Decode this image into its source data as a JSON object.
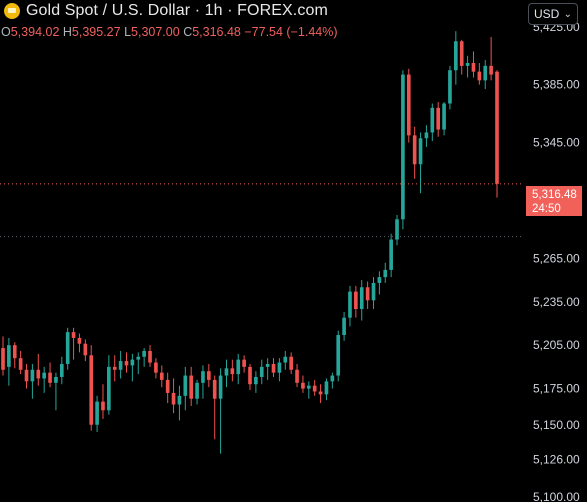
{
  "header": {
    "title": "Gold Spot / U.S. Dollar · 1h · FOREX.com",
    "ohlc": [
      {
        "key": "O",
        "value": "5,394.02"
      },
      {
        "key": "H",
        "value": "5,395.27"
      },
      {
        "key": "L",
        "value": "5,307.00"
      },
      {
        "key": "C",
        "value": "5,316.48"
      }
    ],
    "change": "−77.54 (−1.44%)"
  },
  "currency_selector": {
    "label": "USD"
  },
  "price_label": {
    "price": "5,316.48",
    "countdown": "24:50"
  },
  "colors": {
    "up": "#26a69a",
    "down": "#ef5350",
    "background": "#000000",
    "axis_text": "#d1d4dc"
  },
  "chart_data": {
    "type": "candlestick",
    "interval": "1h",
    "y_axis": {
      "side": "right",
      "ticks": [
        5425,
        5385,
        5345,
        5305,
        5265,
        5235,
        5205,
        5175,
        5150,
        5126,
        5100
      ],
      "tick_labels": [
        "5,425.00",
        "5,385.00",
        "5,345.00",
        "",
        "5,265.00",
        "5,235.00",
        "5,205.00",
        "5,175.00",
        "5,150.00",
        "5,126.00",
        "5,100.00"
      ],
      "range": [
        5098,
        5438
      ]
    },
    "reference_lines": [
      5316.48,
      5280
    ],
    "candles": [
      [
        5203,
        5211,
        5184,
        5188
      ],
      [
        5190,
        5210,
        5177,
        5205
      ],
      [
        5205,
        5207,
        5189,
        5196
      ],
      [
        5196,
        5201,
        5185,
        5188
      ],
      [
        5188,
        5192,
        5175,
        5180
      ],
      [
        5180,
        5192,
        5168,
        5188
      ],
      [
        5188,
        5199,
        5177,
        5182
      ],
      [
        5182,
        5190,
        5172,
        5186
      ],
      [
        5186,
        5193,
        5176,
        5179
      ],
      [
        5179,
        5186,
        5160,
        5183
      ],
      [
        5183,
        5197,
        5178,
        5192
      ],
      [
        5192,
        5217,
        5188,
        5214
      ],
      [
        5214,
        5217,
        5195,
        5210
      ],
      [
        5210,
        5213,
        5200,
        5206
      ],
      [
        5206,
        5209,
        5194,
        5198
      ],
      [
        5198,
        5205,
        5146,
        5150
      ],
      [
        5150,
        5170,
        5145,
        5166
      ],
      [
        5166,
        5178,
        5154,
        5160
      ],
      [
        5160,
        5198,
        5157,
        5190
      ],
      [
        5190,
        5198,
        5180,
        5188
      ],
      [
        5188,
        5201,
        5182,
        5194
      ],
      [
        5194,
        5200,
        5186,
        5191
      ],
      [
        5191,
        5199,
        5180,
        5195
      ],
      [
        5195,
        5200,
        5185,
        5197
      ],
      [
        5197,
        5203,
        5190,
        5201
      ],
      [
        5201,
        5205,
        5190,
        5193
      ],
      [
        5193,
        5196,
        5182,
        5186
      ],
      [
        5186,
        5191,
        5176,
        5181
      ],
      [
        5181,
        5186,
        5165,
        5172
      ],
      [
        5172,
        5182,
        5158,
        5164
      ],
      [
        5164,
        5177,
        5153,
        5170
      ],
      [
        5170,
        5190,
        5160,
        5184
      ],
      [
        5184,
        5190,
        5163,
        5168
      ],
      [
        5168,
        5181,
        5164,
        5179
      ],
      [
        5179,
        5191,
        5168,
        5187
      ],
      [
        5187,
        5192,
        5176,
        5181
      ],
      [
        5181,
        5184,
        5140,
        5168
      ],
      [
        5168,
        5189,
        5130,
        5184
      ],
      [
        5184,
        5195,
        5176,
        5189
      ],
      [
        5189,
        5195,
        5180,
        5185
      ],
      [
        5185,
        5199,
        5178,
        5195
      ],
      [
        5195,
        5198,
        5186,
        5190
      ],
      [
        5190,
        5192,
        5174,
        5178
      ],
      [
        5178,
        5187,
        5172,
        5183
      ],
      [
        5183,
        5195,
        5178,
        5190
      ],
      [
        5190,
        5196,
        5181,
        5192
      ],
      [
        5192,
        5196,
        5183,
        5186
      ],
      [
        5186,
        5196,
        5180,
        5193
      ],
      [
        5193,
        5201,
        5188,
        5197
      ],
      [
        5197,
        5200,
        5185,
        5188
      ],
      [
        5188,
        5192,
        5176,
        5179
      ],
      [
        5179,
        5184,
        5172,
        5175
      ],
      [
        5175,
        5180,
        5168,
        5177
      ],
      [
        5177,
        5181,
        5170,
        5173
      ],
      [
        5173,
        5178,
        5165,
        5171
      ],
      [
        5171,
        5182,
        5167,
        5180
      ],
      [
        5180,
        5186,
        5175,
        5184
      ],
      [
        5184,
        5215,
        5180,
        5212
      ],
      [
        5212,
        5228,
        5208,
        5224
      ],
      [
        5224,
        5246,
        5218,
        5242
      ],
      [
        5242,
        5246,
        5224,
        5230
      ],
      [
        5230,
        5250,
        5222,
        5245
      ],
      [
        5245,
        5249,
        5230,
        5236
      ],
      [
        5236,
        5252,
        5230,
        5248
      ],
      [
        5248,
        5256,
        5240,
        5252
      ],
      [
        5252,
        5262,
        5248,
        5257
      ],
      [
        5257,
        5282,
        5252,
        5278
      ],
      [
        5278,
        5295,
        5274,
        5292
      ],
      [
        5292,
        5395,
        5285,
        5392
      ],
      [
        5392,
        5396,
        5345,
        5350
      ],
      [
        5350,
        5356,
        5320,
        5330
      ],
      [
        5330,
        5352,
        5310,
        5348
      ],
      [
        5348,
        5357,
        5342,
        5352
      ],
      [
        5352,
        5372,
        5346,
        5369
      ],
      [
        5369,
        5373,
        5349,
        5354
      ],
      [
        5354,
        5373,
        5350,
        5372
      ],
      [
        5372,
        5398,
        5368,
        5395
      ],
      [
        5395,
        5422,
        5385,
        5415
      ],
      [
        5415,
        5416,
        5392,
        5398
      ],
      [
        5398,
        5405,
        5390,
        5400
      ],
      [
        5400,
        5408,
        5390,
        5394
      ],
      [
        5394,
        5400,
        5385,
        5388
      ],
      [
        5388,
        5402,
        5382,
        5398
      ],
      [
        5398,
        5418,
        5388,
        5392
      ],
      [
        5394,
        5395,
        5307,
        5316.48
      ]
    ]
  }
}
